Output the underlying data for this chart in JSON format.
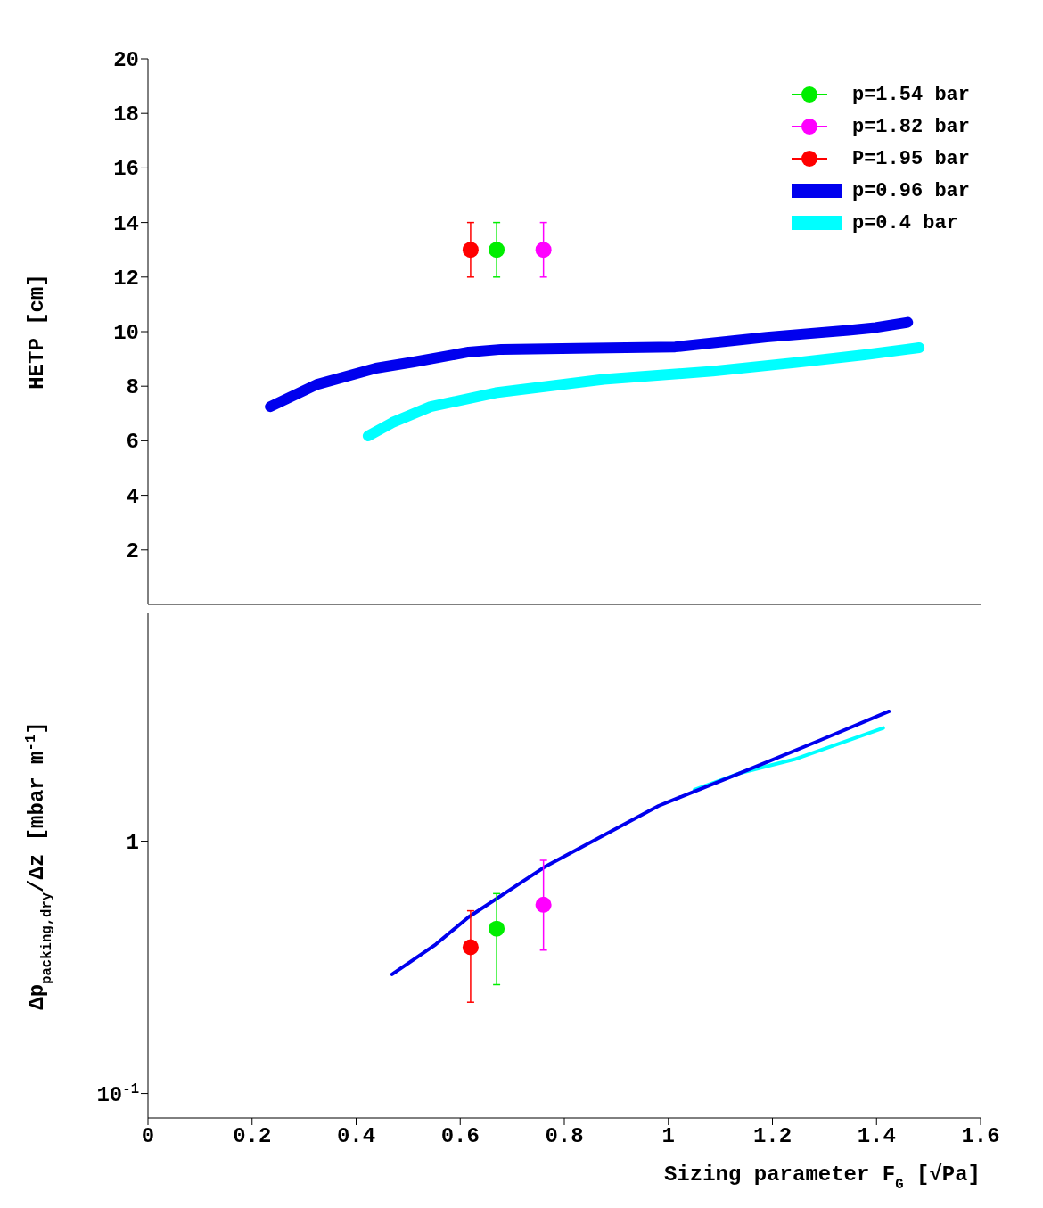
{
  "chart_data": [
    {
      "type": "line",
      "ylabel": "HETP [cm]",
      "xlim": [
        0,
        1.6
      ],
      "xticks": [
        0,
        0.2,
        0.4,
        0.6,
        0.8,
        1,
        1.2,
        1.4,
        1.6
      ],
      "ylim": [
        0,
        20
      ],
      "yticks": [
        2,
        4,
        6,
        8,
        10,
        12,
        14,
        16,
        18,
        20
      ],
      "tick_labels": "y",
      "legend": "top right",
      "grid": false,
      "line_style": "solid",
      "series": [
        {
          "name": "p=1.54 bar",
          "type": "scatter",
          "marker": "circle",
          "color": "#00ee00",
          "x": [
            0.67
          ],
          "values": [
            13
          ],
          "errors": [
            1
          ]
        },
        {
          "name": "p=1.82 bar",
          "type": "scatter",
          "marker": "circle",
          "color": "#ff00ff",
          "x": [
            0.76
          ],
          "values": [
            13
          ],
          "errors": [
            1
          ]
        },
        {
          "name": "P=1.95 bar",
          "type": "scatter",
          "marker": "circle",
          "color": "#ff0000",
          "x": [
            0.62
          ],
          "values": [
            13
          ],
          "errors": [
            1
          ]
        },
        {
          "name": "p=0.96 bar",
          "color": "#0000ee",
          "x": [
            0.235,
            0.324,
            0.438,
            0.511,
            0.616,
            0.679,
            0.824,
            1.013,
            1.189,
            1.346,
            1.398,
            1.46
          ],
          "values": [
            7.25,
            8.06,
            8.66,
            8.89,
            9.25,
            9.35,
            9.39,
            9.44,
            9.8,
            10.05,
            10.15,
            10.34
          ]
        },
        {
          "name": "p=0.4 bar",
          "color": "#00ffff",
          "x": [
            0.423,
            0.47,
            0.543,
            0.668,
            0.876,
            1.085,
            1.242,
            1.377,
            1.482
          ],
          "values": [
            6.18,
            6.67,
            7.25,
            7.76,
            8.25,
            8.55,
            8.86,
            9.15,
            9.41
          ]
        }
      ]
    },
    {
      "type": "line",
      "xlabel": "Sizing parameter F$_{G}$ [√Pa]",
      "ylabel": "Δp$_{packing,dry}$/Δz [mbar m$^{-1}$]",
      "log": "y",
      "xlim": [
        0,
        1.6
      ],
      "xticks": [
        0,
        0.2,
        0.4,
        0.6,
        0.8,
        1,
        1.2,
        1.4,
        1.6
      ],
      "ylim": [
        0.08,
        8
      ],
      "yticks": [
        {
          "value": 0.1,
          "label": "10$^{-1}$"
        },
        1
      ],
      "grid": false,
      "line_style": "solid",
      "series": [
        {
          "color": "#00ffff",
          "x": [
            1.05,
            1.137,
            1.242,
            1.413
          ],
          "values": [
            1.6,
            1.86,
            2.11,
            2.81
          ]
        },
        {
          "color": "#0000ee",
          "x": [
            0.469,
            0.553,
            0.616,
            0.762,
            0.981,
            1.137,
            1.293,
            1.424
          ],
          "values": [
            0.297,
            0.39,
            0.5,
            0.79,
            1.38,
            1.86,
            2.52,
            3.27
          ]
        },
        {
          "type": "scatter",
          "marker": "circle",
          "color": "#00ee00",
          "x": [
            0.67
          ],
          "values": [
            0.45
          ],
          "errors": [
            [
              0.27,
              0.62
            ]
          ]
        },
        {
          "type": "scatter",
          "marker": "circle",
          "color": "#ff00ff",
          "x": [
            0.76
          ],
          "values": [
            0.56
          ],
          "errors": [
            [
              0.37,
              0.84
            ]
          ]
        },
        {
          "type": "scatter",
          "marker": "circle",
          "color": "#ff0000",
          "x": [
            0.62
          ],
          "values": [
            0.38
          ],
          "errors": [
            [
              0.23,
              0.53
            ]
          ]
        }
      ]
    }
  ]
}
